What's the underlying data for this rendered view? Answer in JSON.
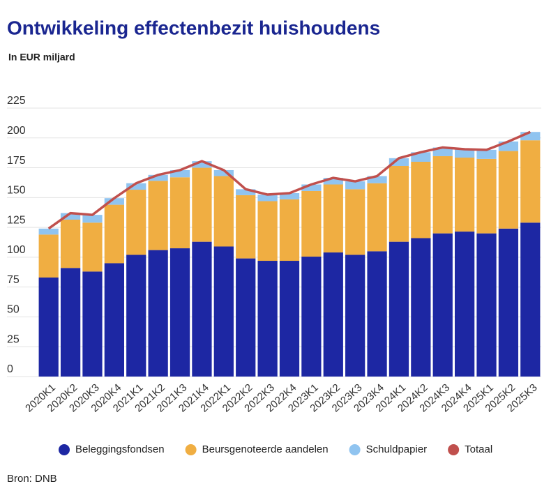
{
  "chart_data": {
    "type": "bar",
    "stacked": true,
    "title": "Ontwikkeling effectenbezit huishoudens",
    "subtitle": "In EUR miljard",
    "source": "Bron: DNB",
    "categories": [
      "2020K1",
      "2020K2",
      "2020K3",
      "2020K4",
      "2021K1",
      "2021K2",
      "2021K3",
      "2021K4",
      "2022K1",
      "2022K2",
      "2022K3",
      "2022K4",
      "2023K1",
      "2023K2",
      "2023K3",
      "2023K4",
      "2024K1",
      "2024K2",
      "2024K3",
      "2024K4",
      "2025K1",
      "2025K2",
      "2025K3"
    ],
    "series": [
      {
        "name": "Beleggingsfondsen",
        "type": "bar",
        "color": "#1d27a3",
        "values": [
          83,
          91,
          88,
          95,
          102,
          106,
          107.5,
          113,
          109,
          99,
          97,
          97,
          100.5,
          104,
          102,
          105,
          113,
          116,
          120,
          121.5,
          120,
          124,
          129
        ]
      },
      {
        "name": "Beursgenoteerde aandelen",
        "type": "bar",
        "color": "#f0ae42",
        "values": [
          36,
          40.5,
          41,
          49,
          54.6,
          58,
          59.5,
          62,
          59,
          53,
          50,
          51.5,
          55,
          57,
          55,
          57,
          63.5,
          64,
          64.7,
          62,
          62.4,
          65,
          69
        ]
      },
      {
        "name": "Schuldpapier",
        "type": "bar",
        "color": "#90c4f0",
        "values": [
          5,
          5.5,
          6.5,
          5.5,
          5.4,
          5,
          6,
          5.5,
          5,
          5,
          5.5,
          5.2,
          5.5,
          5.5,
          6.6,
          6,
          6.5,
          8,
          7.3,
          7,
          7.6,
          8,
          7
        ]
      },
      {
        "name": "Totaal",
        "type": "line",
        "color": "#c0504d",
        "values": [
          124,
          137,
          135.5,
          149.5,
          162,
          169,
          173,
          180.5,
          173,
          157,
          152.5,
          153.7,
          161,
          166.5,
          163.6,
          168,
          183,
          188,
          192,
          190.5,
          190,
          197,
          205
        ]
      }
    ],
    "ylim": [
      0,
      225
    ],
    "yticks": [
      0,
      25,
      50,
      75,
      100,
      125,
      150,
      175,
      200,
      225
    ],
    "grid": true,
    "legend": "bottom"
  }
}
